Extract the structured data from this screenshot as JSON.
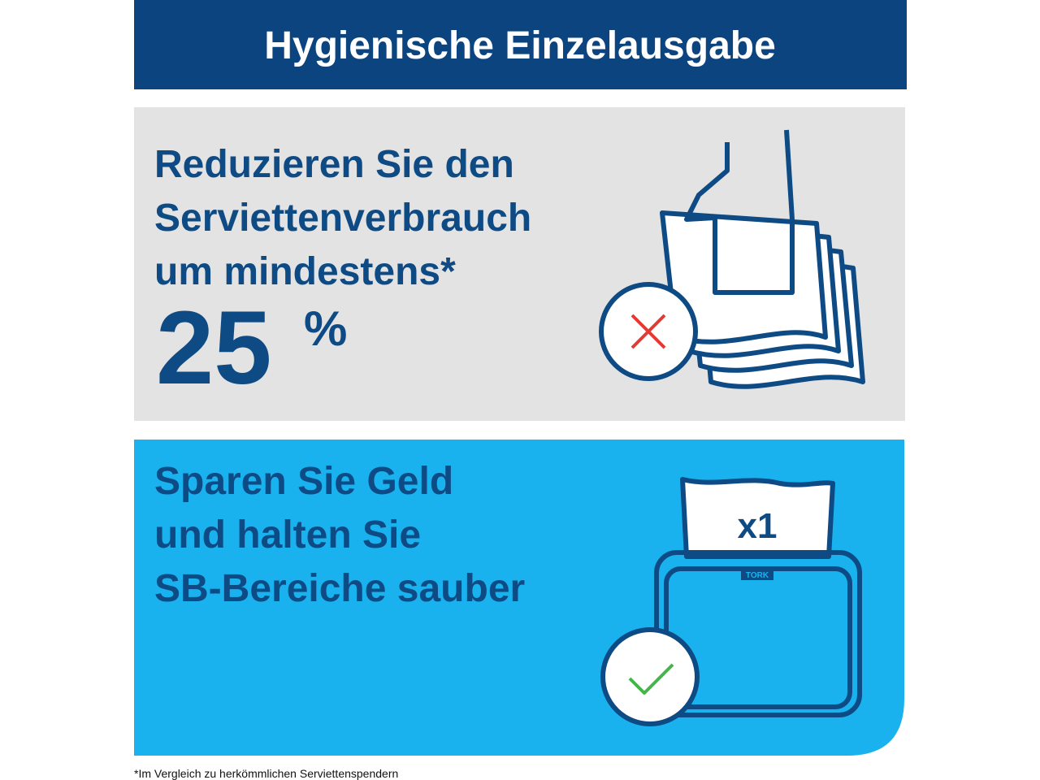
{
  "header": {
    "title": "Hygienische Einzelausgabe"
  },
  "panel_1": {
    "lines": [
      "Reduzieren Sie den",
      "Serviettenverbrauch",
      "um mindestens*"
    ],
    "figure": "25",
    "unit": "%"
  },
  "panel_2": {
    "lines": [
      "Sparen Sie Geld",
      "und halten Sie",
      "SB-Bereiche sauber"
    ],
    "napkin_label": "x1",
    "brand": "TORK"
  },
  "footnote": "*Im Vergleich zu herkömmlichen Serviettenspendern"
}
